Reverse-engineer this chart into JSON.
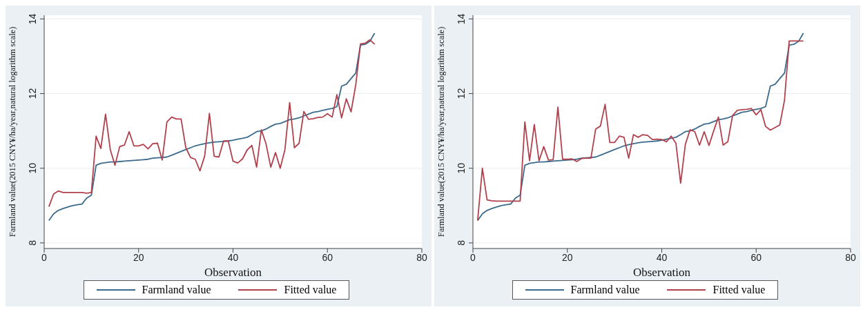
{
  "chart_data": [
    {
      "type": "line",
      "xlabel": "Observation",
      "ylabel": "Farmland value(2015 CNY¥/ha/year,natural logarithm scale)",
      "x": [
        1,
        2,
        3,
        4,
        5,
        6,
        7,
        8,
        9,
        10,
        11,
        12,
        13,
        14,
        15,
        16,
        17,
        18,
        19,
        20,
        21,
        22,
        23,
        24,
        25,
        26,
        27,
        28,
        29,
        30,
        31,
        32,
        33,
        34,
        35,
        36,
        37,
        38,
        39,
        40,
        41,
        42,
        43,
        44,
        45,
        46,
        47,
        48,
        49,
        50,
        51,
        52,
        53,
        54,
        55,
        56,
        57,
        58,
        59,
        60,
        61,
        62,
        63,
        64,
        65,
        66,
        67,
        68,
        69,
        70
      ],
      "xlim": [
        0,
        80
      ],
      "xticks": [
        0,
        20,
        40,
        60,
        80
      ],
      "ylim": [
        7.85,
        14.1
      ],
      "yticks": [
        8,
        10,
        12,
        14
      ],
      "grid": "y",
      "legend": "bottom",
      "marker": "none",
      "line_style": "solid",
      "series": [
        {
          "name": "Farmland value",
          "color": "#3a6a8c",
          "values": [
            8.6,
            8.78,
            8.87,
            8.92,
            8.96,
            9.0,
            9.02,
            9.04,
            9.2,
            9.28,
            10.08,
            10.13,
            10.15,
            10.17,
            10.17,
            10.18,
            10.19,
            10.2,
            10.21,
            10.22,
            10.23,
            10.24,
            10.27,
            10.28,
            10.29,
            10.3,
            10.35,
            10.4,
            10.45,
            10.5,
            10.55,
            10.6,
            10.63,
            10.66,
            10.68,
            10.7,
            10.71,
            10.72,
            10.73,
            10.75,
            10.78,
            10.8,
            10.83,
            10.9,
            10.98,
            11.0,
            11.05,
            11.12,
            11.18,
            11.2,
            11.25,
            11.3,
            11.32,
            11.35,
            11.4,
            11.45,
            11.5,
            11.52,
            11.55,
            11.58,
            11.6,
            11.65,
            12.2,
            12.25,
            12.4,
            12.55,
            13.3,
            13.32,
            13.4,
            13.62
          ]
        },
        {
          "name": "Fitted value",
          "color": "#b0404c",
          "values": [
            8.97,
            9.31,
            9.39,
            9.35,
            9.35,
            9.35,
            9.35,
            9.35,
            9.33,
            9.35,
            10.86,
            10.53,
            11.45,
            10.5,
            10.08,
            10.58,
            10.62,
            10.98,
            10.6,
            10.6,
            10.64,
            10.52,
            10.66,
            10.67,
            10.22,
            11.24,
            11.37,
            11.32,
            11.32,
            10.55,
            10.29,
            10.24,
            9.93,
            10.33,
            11.47,
            10.32,
            10.3,
            10.73,
            10.73,
            10.19,
            10.14,
            10.25,
            10.49,
            10.61,
            10.03,
            11.03,
            10.65,
            10.03,
            10.42,
            10.0,
            10.5,
            11.76,
            10.55,
            10.67,
            11.52,
            11.31,
            11.33,
            11.36,
            11.37,
            11.46,
            11.37,
            11.97,
            11.35,
            11.86,
            11.51,
            12.23,
            13.33,
            13.35,
            13.44,
            13.32
          ]
        }
      ]
    },
    {
      "type": "line",
      "xlabel": "Observation",
      "ylabel": "Farmland value(2015 CNY¥/ha/year,natural logarithm scale)",
      "x": [
        1,
        2,
        3,
        4,
        5,
        6,
        7,
        8,
        9,
        10,
        11,
        12,
        13,
        14,
        15,
        16,
        17,
        18,
        19,
        20,
        21,
        22,
        23,
        24,
        25,
        26,
        27,
        28,
        29,
        30,
        31,
        32,
        33,
        34,
        35,
        36,
        37,
        38,
        39,
        40,
        41,
        42,
        43,
        44,
        45,
        46,
        47,
        48,
        49,
        50,
        51,
        52,
        53,
        54,
        55,
        56,
        57,
        58,
        59,
        60,
        61,
        62,
        63,
        64,
        65,
        66,
        67,
        68,
        69,
        70
      ],
      "xlim": [
        0,
        80
      ],
      "xticks": [
        0,
        20,
        40,
        60,
        80
      ],
      "ylim": [
        7.85,
        14.1
      ],
      "yticks": [
        8,
        10,
        12,
        14
      ],
      "grid": "y",
      "legend": "bottom",
      "marker": "none",
      "line_style": "solid",
      "series": [
        {
          "name": "Farmland value",
          "color": "#3a6a8c",
          "values": [
            8.6,
            8.78,
            8.87,
            8.92,
            8.96,
            9.0,
            9.02,
            9.04,
            9.2,
            9.28,
            10.08,
            10.13,
            10.15,
            10.17,
            10.17,
            10.18,
            10.19,
            10.2,
            10.21,
            10.22,
            10.23,
            10.24,
            10.27,
            10.28,
            10.29,
            10.3,
            10.35,
            10.4,
            10.45,
            10.5,
            10.55,
            10.6,
            10.63,
            10.66,
            10.68,
            10.7,
            10.71,
            10.72,
            10.73,
            10.75,
            10.78,
            10.8,
            10.83,
            10.9,
            10.98,
            11.0,
            11.05,
            11.12,
            11.18,
            11.2,
            11.25,
            11.3,
            11.32,
            11.35,
            11.4,
            11.45,
            11.5,
            11.52,
            11.55,
            11.58,
            11.6,
            11.65,
            12.2,
            12.25,
            12.4,
            12.55,
            13.3,
            13.32,
            13.4,
            13.62
          ]
        },
        {
          "name": "Fitted value",
          "color": "#b0404c",
          "values": [
            8.6,
            10.0,
            9.15,
            9.13,
            9.12,
            9.12,
            9.12,
            9.12,
            9.12,
            9.12,
            11.24,
            10.2,
            11.17,
            10.2,
            10.58,
            10.22,
            10.23,
            11.64,
            10.24,
            10.24,
            10.25,
            10.18,
            10.26,
            10.27,
            10.27,
            11.05,
            11.13,
            11.71,
            10.69,
            10.69,
            10.86,
            10.83,
            10.27,
            10.9,
            10.83,
            10.9,
            10.88,
            10.77,
            10.78,
            10.77,
            10.71,
            10.86,
            10.67,
            9.6,
            10.64,
            11.03,
            10.98,
            10.62,
            10.98,
            10.61,
            11.0,
            11.37,
            10.62,
            10.71,
            11.41,
            11.55,
            11.57,
            11.58,
            11.6,
            11.43,
            11.57,
            11.12,
            11.02,
            11.09,
            11.16,
            11.82,
            13.41,
            13.41,
            13.41,
            13.41
          ]
        }
      ]
    }
  ]
}
